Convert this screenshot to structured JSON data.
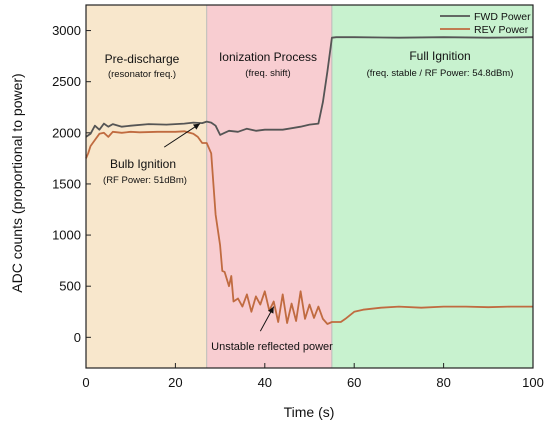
{
  "chart_data": {
    "type": "line",
    "title": "",
    "xlabel": "Time (s)",
    "ylabel": "ADC counts (proportional to power)",
    "xlim": [
      0,
      100
    ],
    "ylim": [
      -300,
      3250
    ],
    "x_ticks": [
      0,
      20,
      40,
      60,
      80,
      100
    ],
    "y_ticks": [
      0,
      500,
      1000,
      1500,
      2000,
      2500,
      3000
    ],
    "grid": false,
    "legend_position": "top-right",
    "regions": [
      {
        "x_start": 0,
        "x_end": 27,
        "color": "#f8e7cc",
        "label": "Pre-discharge",
        "sublabel": "(resonator freq.)"
      },
      {
        "x_start": 27,
        "x_end": 55,
        "color": "#f8cdd1",
        "label": "Ionization Process",
        "sublabel": "(freq. shift)"
      },
      {
        "x_start": 55,
        "x_end": 100,
        "color": "#c8f2cf",
        "label": "Full Ignition",
        "sublabel": "(freq. stable / RF Power: 54.8dBm)"
      }
    ],
    "annotations": [
      {
        "label": "Bulb Ignition",
        "sublabel": "(RF Power: 51dBm)",
        "arrow_from": [
          17.5,
          1860
        ],
        "arrow_to": [
          25.5,
          2090
        ]
      },
      {
        "label": "Unstable reflected power",
        "arrow_from": [
          39,
          60
        ],
        "arrow_to": [
          42,
          300
        ]
      }
    ],
    "series": [
      {
        "name": "FWD Power",
        "color": "#555555",
        "x": [
          0,
          1,
          2,
          3,
          4,
          5,
          6,
          8,
          10,
          14,
          18,
          20,
          22,
          24,
          26,
          27,
          28,
          29,
          30,
          31,
          32,
          34,
          36,
          38,
          40,
          44,
          48,
          50,
          52,
          53,
          54,
          55,
          56,
          60,
          70,
          80,
          90,
          100
        ],
        "y": [
          1960,
          1990,
          2070,
          2030,
          2090,
          2060,
          2085,
          2060,
          2070,
          2085,
          2080,
          2085,
          2090,
          2100,
          2095,
          2110,
          2100,
          2070,
          1980,
          2000,
          2020,
          2010,
          2040,
          2020,
          2030,
          2030,
          2060,
          2080,
          2090,
          2300,
          2600,
          2930,
          2935,
          2935,
          2930,
          2935,
          2930,
          2935
        ]
      },
      {
        "name": "REV Power",
        "color": "#c06b40",
        "x": [
          0,
          0.5,
          1,
          2,
          3,
          4,
          5,
          6,
          8,
          10,
          12,
          16,
          20,
          22,
          24,
          25,
          26,
          27,
          28,
          29,
          30,
          30.5,
          31,
          32,
          32.5,
          33,
          34,
          35,
          36,
          37,
          38,
          39,
          40,
          41,
          42,
          43,
          44,
          45,
          46,
          47,
          48,
          49,
          50,
          51,
          52,
          53,
          54,
          55,
          57,
          58,
          60,
          62,
          64,
          66,
          70,
          75,
          80,
          85,
          90,
          95,
          100
        ],
        "y": [
          1750,
          1800,
          1870,
          1930,
          1990,
          2000,
          1960,
          2010,
          2000,
          2010,
          2005,
          2010,
          2010,
          2015,
          1990,
          1960,
          1900,
          1900,
          1800,
          1200,
          900,
          650,
          640,
          500,
          600,
          350,
          380,
          300,
          420,
          250,
          400,
          320,
          450,
          260,
          350,
          150,
          420,
          140,
          330,
          160,
          450,
          180,
          320,
          190,
          300,
          180,
          130,
          150,
          150,
          180,
          250,
          270,
          280,
          290,
          300,
          290,
          300,
          300,
          295,
          300,
          300
        ]
      }
    ]
  }
}
